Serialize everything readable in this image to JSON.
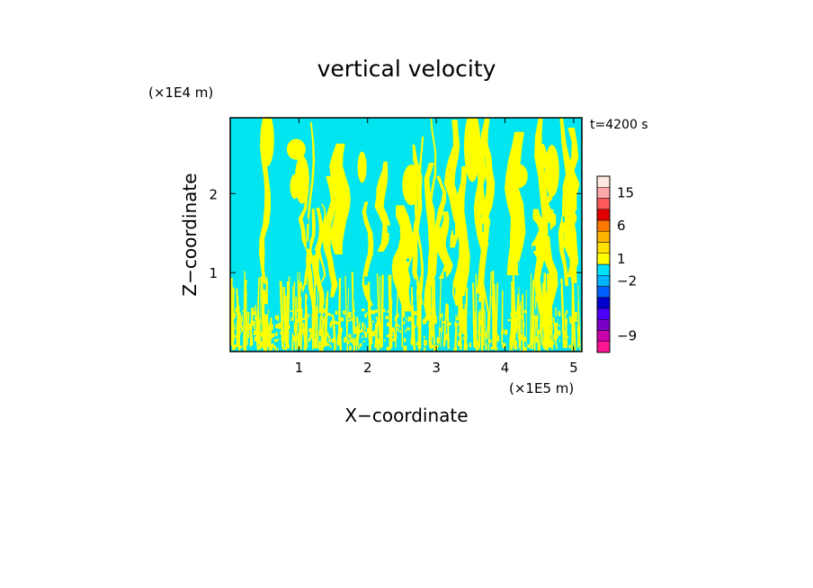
{
  "chart_data": {
    "type": "heatmap",
    "title": "vertical velocity",
    "xlabel": "X−coordinate",
    "ylabel": "Z−coordinate",
    "x_unit": "(×1E5 m)",
    "y_unit": "(×1E4 m)",
    "time_label": "t=4200 s",
    "xlim": [
      0,
      5.12
    ],
    "ylim": [
      0,
      2.96
    ],
    "x_ticks": [
      "1",
      "2",
      "3",
      "4",
      "5"
    ],
    "y_ticks": [
      "1",
      "2"
    ],
    "colorbar": {
      "tick_labels": [
        "15",
        "6",
        "1",
        "−2",
        "−9"
      ],
      "levels": [
        {
          "color": "#ff1493"
        },
        {
          "color": "#cc00aa"
        },
        {
          "color": "#7a00c8"
        },
        {
          "color": "#4b00ff"
        },
        {
          "color": "#0000cc"
        },
        {
          "color": "#0060ff"
        },
        {
          "color": "#00b4ff"
        },
        {
          "color": "#00e0ff"
        },
        {
          "color": "#ffff00"
        },
        {
          "color": "#ffe000"
        },
        {
          "color": "#ffb400"
        },
        {
          "color": "#ff7800"
        },
        {
          "color": "#e00000"
        },
        {
          "color": "#ff5a5a"
        },
        {
          "color": "#ffaaaa"
        },
        {
          "color": "#ffe8e0"
        }
      ]
    },
    "field_colors": {
      "negative": "#00e5f0",
      "positive": "#ffff00"
    }
  }
}
